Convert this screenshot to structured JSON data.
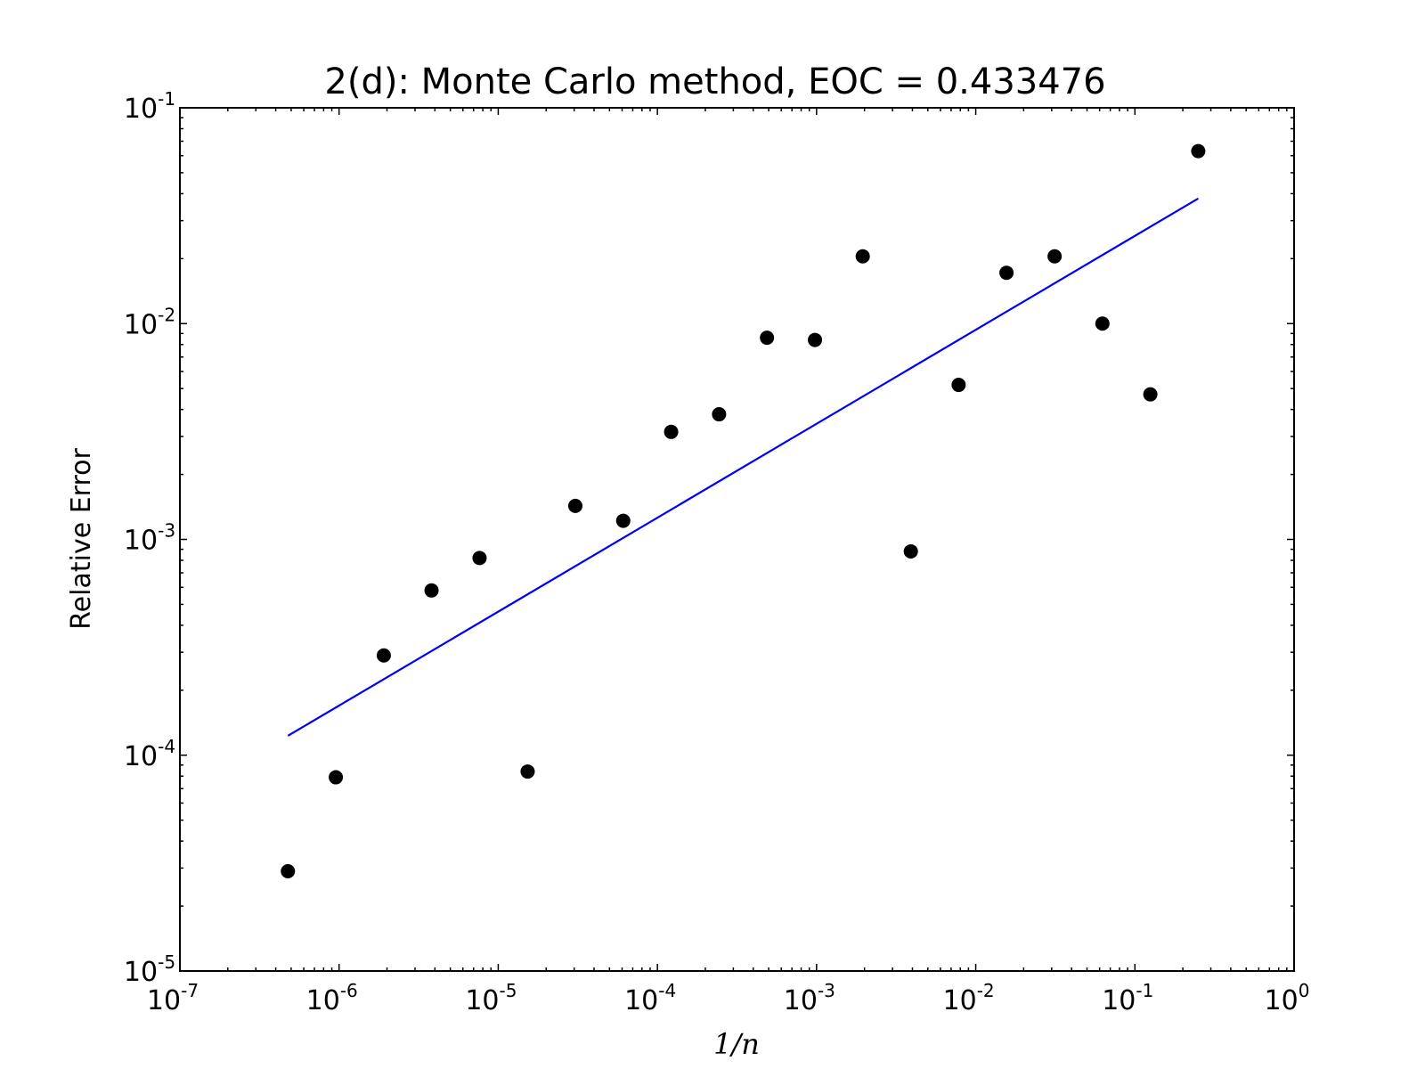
{
  "chart_data": {
    "type": "scatter",
    "title": "2(d): Monte Carlo method, EOC = 0.433476",
    "xlabel": "1/n",
    "ylabel": "Relative Error",
    "xscale": "log",
    "yscale": "log",
    "xlim": [
      1e-07,
      1
    ],
    "ylim": [
      1e-05,
      0.1
    ],
    "grid": false,
    "x_ticks": [
      {
        "base": "10",
        "exp": "-7",
        "value": 1e-07
      },
      {
        "base": "10",
        "exp": "-6",
        "value": 1e-06
      },
      {
        "base": "10",
        "exp": "-5",
        "value": 1e-05
      },
      {
        "base": "10",
        "exp": "-4",
        "value": 0.0001
      },
      {
        "base": "10",
        "exp": "-3",
        "value": 0.001
      },
      {
        "base": "10",
        "exp": "-2",
        "value": 0.01
      },
      {
        "base": "10",
        "exp": "-1",
        "value": 0.1
      },
      {
        "base": "10",
        "exp": "0",
        "value": 1
      }
    ],
    "y_ticks": [
      {
        "base": "10",
        "exp": "-5",
        "value": 1e-05
      },
      {
        "base": "10",
        "exp": "-4",
        "value": 0.0001
      },
      {
        "base": "10",
        "exp": "-3",
        "value": 0.001
      },
      {
        "base": "10",
        "exp": "-2",
        "value": 0.01
      },
      {
        "base": "10",
        "exp": "-1",
        "value": 0.1
      }
    ],
    "series": [
      {
        "type": "scatter",
        "color": "#000000",
        "x": [
          4.77e-07,
          9.54e-07,
          1.91e-06,
          3.81e-06,
          7.63e-06,
          1.53e-05,
          3.05e-05,
          6.1e-05,
          0.000122,
          0.000244,
          0.000488,
          0.000977,
          0.00195,
          0.00391,
          0.00781,
          0.0156,
          0.0313,
          0.0625,
          0.125,
          0.25
        ],
        "y": [
          2.9e-05,
          7.9e-05,
          0.00029,
          0.00058,
          0.00082,
          8.4e-05,
          0.00143,
          0.00122,
          0.00315,
          0.0038,
          0.0086,
          0.0084,
          0.0205,
          0.00088,
          0.0052,
          0.0172,
          0.0205,
          0.01,
          0.0047,
          0.063
        ]
      },
      {
        "type": "line",
        "color": "#0000ff",
        "x": [
          4.77e-07,
          0.25
        ],
        "y": [
          0.000123,
          0.038
        ]
      }
    ]
  }
}
